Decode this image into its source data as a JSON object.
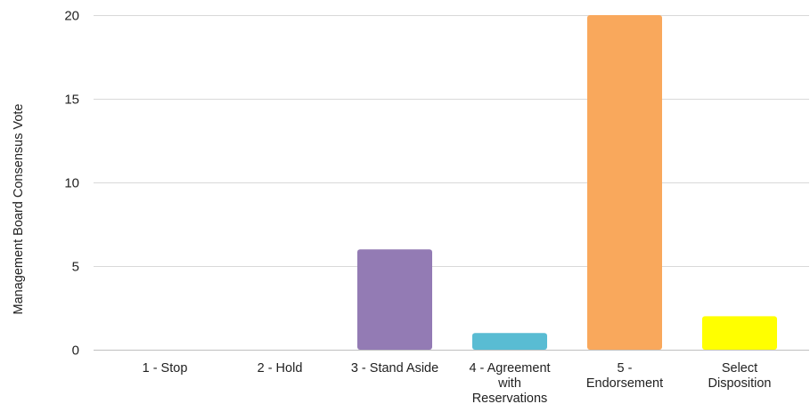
{
  "chart_data": {
    "type": "bar",
    "title": "",
    "xlabel": "",
    "ylabel": "Management Board Consensus Vote",
    "categories": [
      "1 - Stop",
      "2 - Hold",
      "3 - Stand Aside",
      "4 - Agreement with Reservations",
      "5 - Endorsement",
      "Select Disposition"
    ],
    "category_label_lines": [
      [
        "1 - Stop"
      ],
      [
        "2 - Hold"
      ],
      [
        "3 - Stand Aside"
      ],
      [
        "4 - Agreement",
        "with",
        "Reservations"
      ],
      [
        "5 -",
        "Endorsement"
      ],
      [
        "Select",
        "Disposition"
      ]
    ],
    "values": [
      0,
      0,
      6,
      1,
      20,
      2
    ],
    "colors": [
      "#e15759",
      "#59a14f",
      "#937bb4",
      "#59bcd3",
      "#f9a85c",
      "#ffff00"
    ],
    "ylim": [
      0,
      20
    ],
    "yticks": [
      0,
      5,
      10,
      15,
      20
    ],
    "grid": true,
    "legend": "none"
  }
}
